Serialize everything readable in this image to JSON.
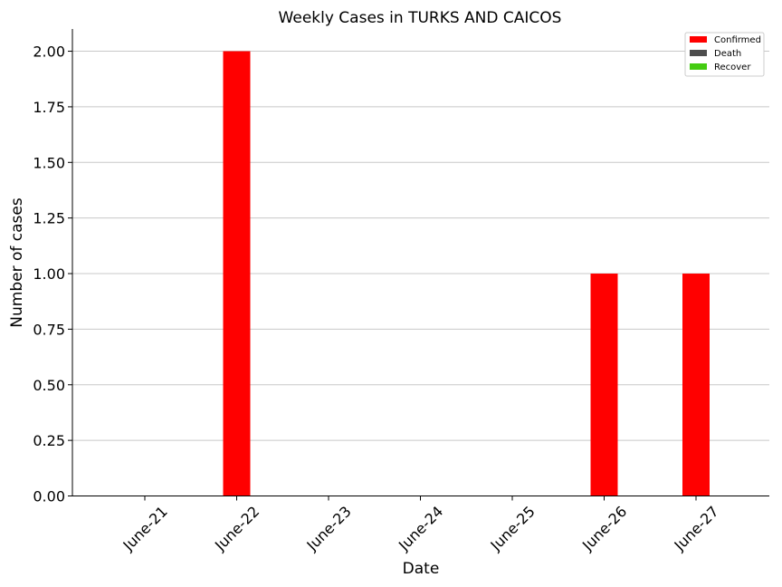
{
  "chart_data": {
    "type": "bar",
    "title": "Weekly Cases in TURKS AND CAICOS",
    "xlabel": "Date",
    "ylabel": "Number of cases",
    "categories": [
      "June-21",
      "June-22",
      "June-23",
      "June-24",
      "June-25",
      "June-26",
      "June-27"
    ],
    "series": [
      {
        "name": "Confirmed",
        "values": [
          0,
          2,
          0,
          0,
          0,
          1,
          1
        ],
        "color": "#ff0000"
      },
      {
        "name": "Death",
        "values": [
          0,
          0,
          0,
          0,
          0,
          0,
          0
        ],
        "color": "#4d4d4d"
      },
      {
        "name": "Recover",
        "values": [
          0,
          0,
          0,
          0,
          0,
          0,
          0
        ],
        "color": "#44cc11"
      }
    ],
    "ylim": [
      0,
      2.1
    ],
    "yticks": [
      "0.00",
      "0.25",
      "0.50",
      "0.75",
      "1.00",
      "1.25",
      "1.50",
      "1.75",
      "2.00"
    ],
    "grid": "horizontal",
    "legend_position": "top-right"
  }
}
